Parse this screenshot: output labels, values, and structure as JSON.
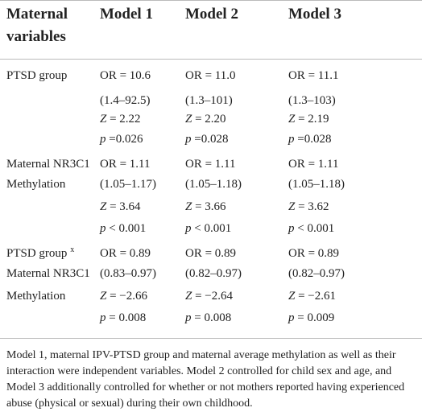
{
  "table": {
    "headers": [
      "Maternal",
      "variables",
      "Model 1",
      "Model 2",
      "Model 3"
    ],
    "rows": [
      {
        "label": "PTSD group",
        "m1": "OR = 10.6",
        "m2": "OR = 11.0",
        "m3": "OR = 11.1"
      },
      {
        "label": "",
        "m1": "(1.4–92.5)",
        "m2": "(1.3–101)",
        "m3": "(1.3–103)"
      },
      {
        "label": "",
        "m1": "Z = 2.22",
        "m2": "Z = 2.20",
        "m3": "Z = 2.19"
      },
      {
        "label": "",
        "m1": "p =0.026",
        "m2": "p =0.028",
        "m3": "p =0.028"
      },
      {
        "label": "Maternal NR3C1",
        "m1": "OR = 1.11",
        "m2": "OR = 1.11",
        "m3": "OR = 1.11"
      },
      {
        "label": "Methylation",
        "m1": "(1.05–1.17)",
        "m2": "(1.05–1.18)",
        "m3": "(1.05–1.18)"
      },
      {
        "label": "",
        "m1": "Z = 3.64",
        "m2": "Z = 3.66",
        "m3": "Z = 3.62"
      },
      {
        "label": "",
        "m1": "p < 0.001",
        "m2": "p < 0.001",
        "m3": "p < 0.001"
      },
      {
        "label": "PTSD group",
        "label_sup": "x",
        "m1": "OR = 0.89",
        "m2": "OR = 0.89",
        "m3": "OR = 0.89"
      },
      {
        "label": "Maternal NR3C1",
        "m1": "(0.83–0.97)",
        "m2": "(0.82–0.97)",
        "m3": "(0.82–0.97)"
      },
      {
        "label": "Methylation",
        "m1": "Z = −2.66",
        "m2": "Z = −2.64",
        "m3": "Z = −2.61"
      },
      {
        "label": "",
        "m1": "p = 0.008",
        "m2": "p = 0.008",
        "m3": "p = 0.009"
      }
    ]
  },
  "footnote": "Model 1, maternal IPV-PTSD group and maternal average methylation as well as their interaction were independent variables. Model 2 controlled for child sex and age, and Model 3 additionally controlled for whether or not mothers reported having experienced abuse (physical or sexual) during their own childhood."
}
